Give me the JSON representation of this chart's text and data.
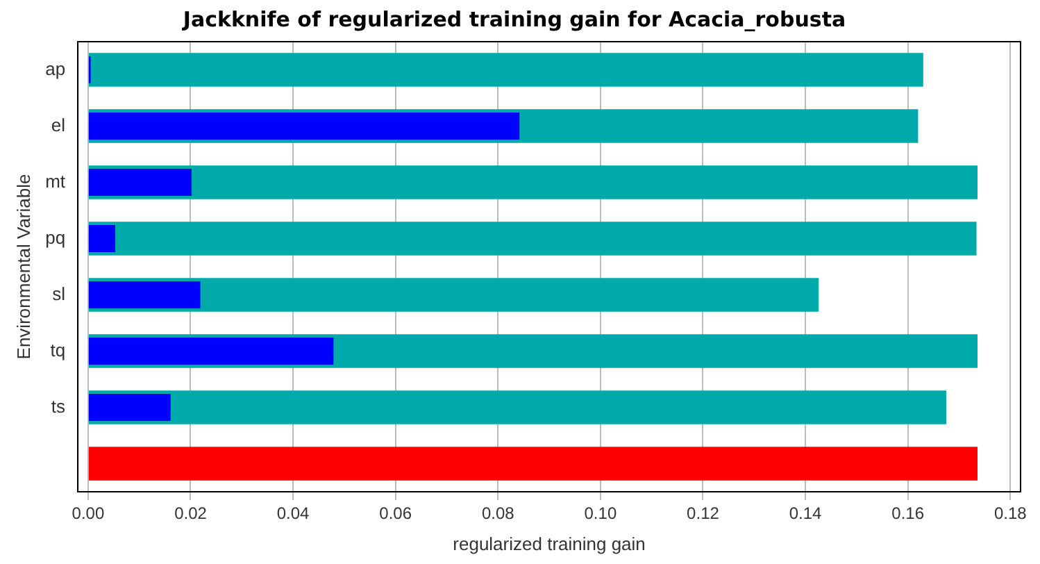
{
  "chart_data": {
    "type": "bar",
    "orientation": "horizontal",
    "title": "Jackknife of regularized training gain for Acacia_robusta",
    "xlabel": "regularized training gain",
    "ylabel": "Environmental Variable",
    "categories": [
      "ap",
      "el",
      "mt",
      "pq",
      "sl",
      "tq",
      "ts",
      null
    ],
    "series": [
      {
        "color": "#00aaaa",
        "values": [
          0.163,
          0.162,
          0.1736,
          0.1734,
          0.1426,
          0.1736,
          0.1675,
          null
        ]
      },
      {
        "color": "#0000ff",
        "values": [
          0.0005,
          0.0842,
          0.0202,
          0.0053,
          0.0219,
          0.0479,
          0.0161,
          null
        ]
      },
      {
        "color": "#ff0000",
        "values": [
          null,
          null,
          null,
          null,
          null,
          null,
          null,
          0.1736
        ]
      }
    ],
    "xlim": [
      -0.002,
      0.182
    ],
    "xticks": [
      {
        "value": 0,
        "label": "0.00"
      },
      {
        "value": 0.02,
        "label": "0.02"
      },
      {
        "value": 0.04,
        "label": "0.04"
      },
      {
        "value": 0.06,
        "label": "0.06"
      },
      {
        "value": 0.08,
        "label": "0.08"
      },
      {
        "value": 0.1,
        "label": "0.10"
      },
      {
        "value": 0.12,
        "label": "0.12"
      },
      {
        "value": 0.14,
        "label": "0.14"
      },
      {
        "value": 0.16,
        "label": "0.16"
      },
      {
        "value": 0.18,
        "label": "0.18"
      }
    ],
    "grid": "x",
    "legend": false
  }
}
